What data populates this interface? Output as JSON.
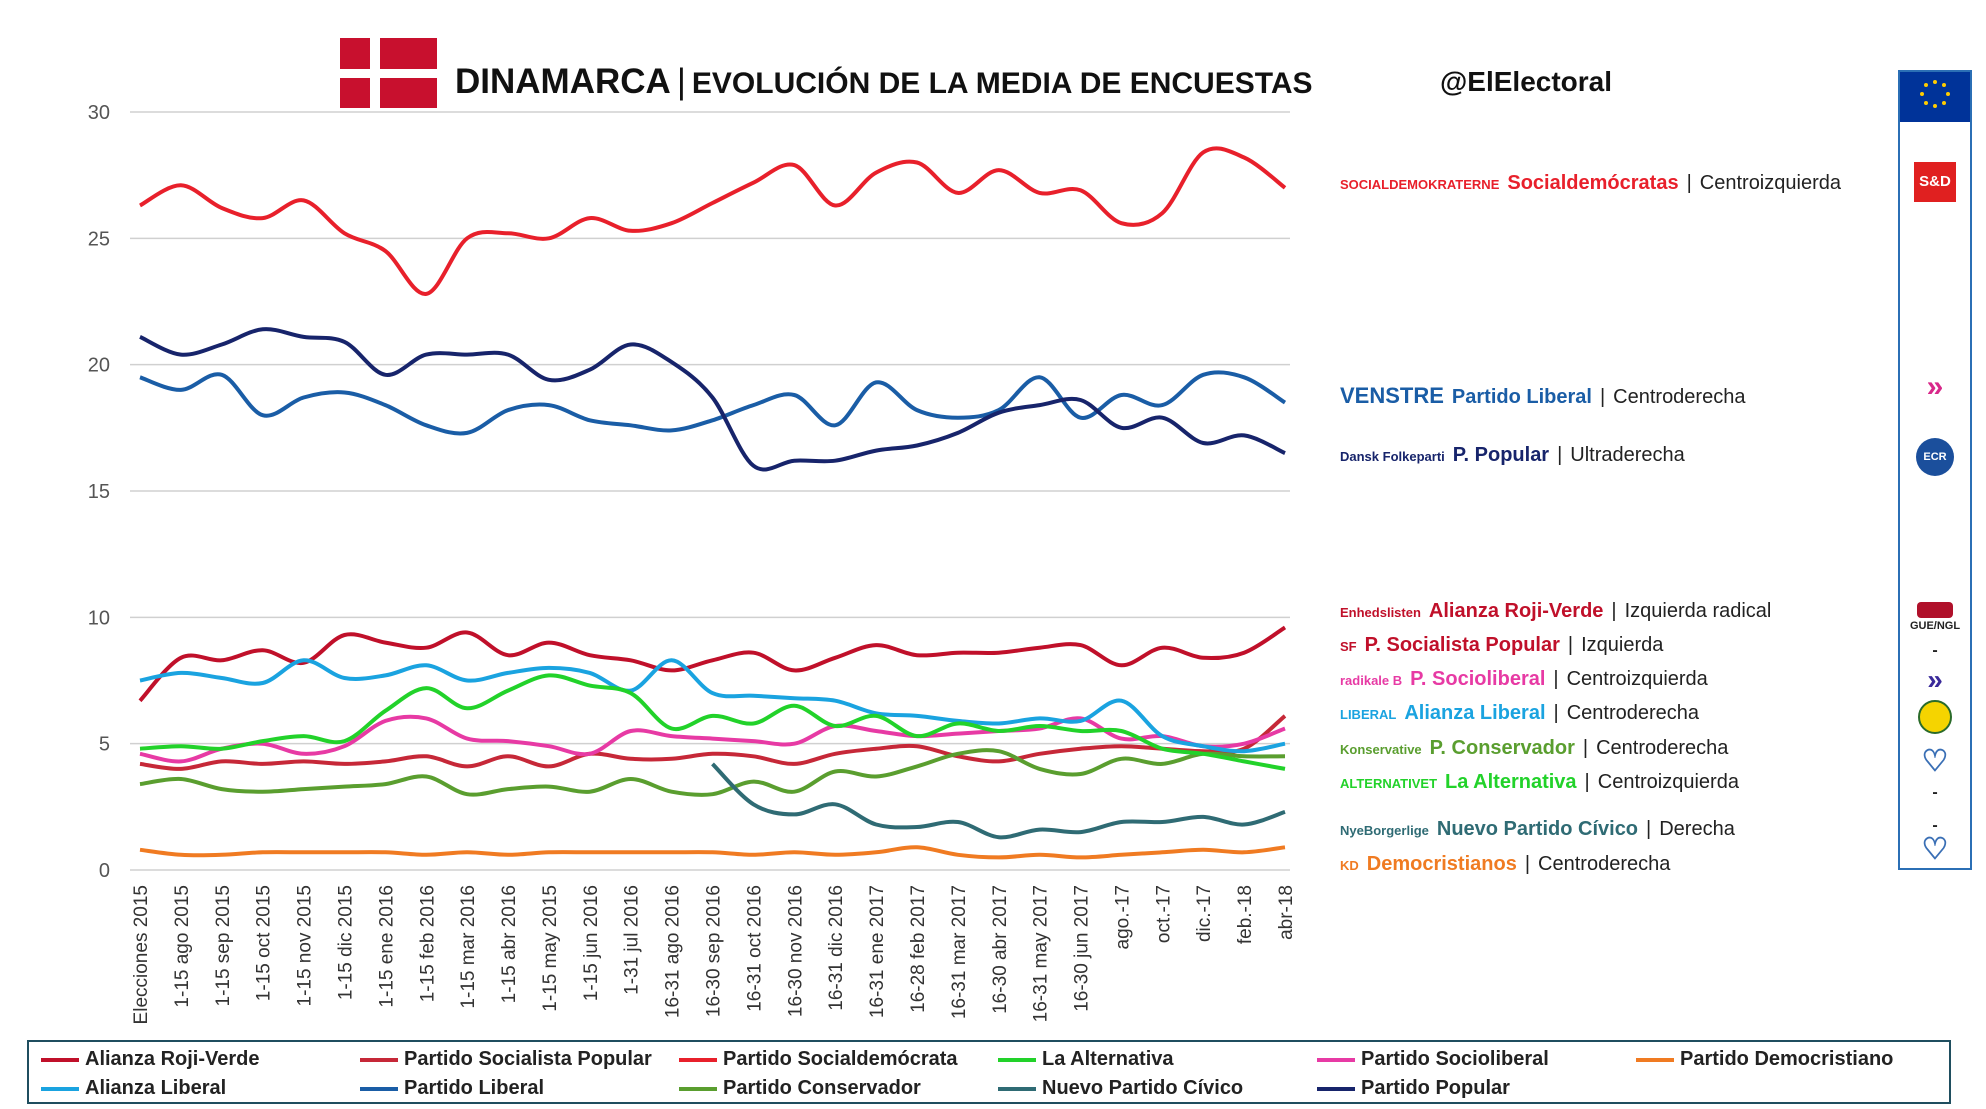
{
  "header": {
    "title_main": "DINAMARCA",
    "title_sep": "|",
    "title_sub": "EVOLUCIÓN DE LA MEDIA DE ENCUESTAS",
    "handle": "@ElElectoral"
  },
  "parties_panel": [
    {
      "logo": "SOCIALDEMOKRATERNE",
      "name": "Socialdemócratas",
      "ideology": "Centroizquierda",
      "color": "#e8202b"
    },
    {
      "logo": "VENSTRE",
      "name": "Partido Liberal",
      "ideology": "Centroderecha",
      "color": "#1a5da6"
    },
    {
      "logo": "Dansk Folkeparti",
      "name": "P. Popular",
      "ideology": "Ultraderecha",
      "color": "#17246b"
    },
    {
      "logo": "Enhedslisten",
      "name": "Alianza Roji-Verde",
      "ideology": "Izquierda radical",
      "color": "#c0102a"
    },
    {
      "logo": "SF",
      "name": "P. Socialista Popular",
      "ideology": "Izquierda",
      "color": "#c0102a"
    },
    {
      "logo": "radikale B",
      "name": "P. Socioliberal",
      "ideology": "Centroizquierda",
      "color": "#e73aa4"
    },
    {
      "logo": "LIBERAL",
      "name": "Alianza Liberal",
      "ideology": "Centroderecha",
      "color": "#1aa3e0"
    },
    {
      "logo": "Konservative",
      "name": "P. Conservador",
      "ideology": "Centroderecha",
      "color": "#5a9e2f"
    },
    {
      "logo": "ALTERNATIVET",
      "name": "La Alternativa",
      "ideology": "Centroizquierda",
      "color": "#22d22a"
    },
    {
      "logo": "NyeBorgerlige",
      "name": "Nuevo Partido Cívico",
      "ideology": "Derecha",
      "color": "#2f6b74"
    },
    {
      "logo": "KD",
      "name": "Democristianos",
      "ideology": "Centroderecha",
      "color": "#f07b22"
    }
  ],
  "sidebar": {
    "icons": [
      {
        "name": "eu-flag-icon"
      },
      {
        "name": "sd-group-icon",
        "label": "S&D"
      },
      {
        "name": "alde-group-icon"
      },
      {
        "name": "ecr-group-icon",
        "label": "ECR"
      },
      {
        "name": "gue-ngl-group-icon",
        "label": "GUE/NGL"
      },
      {
        "name": "alde-group-icon-2"
      },
      {
        "name": "greens-group-icon"
      },
      {
        "name": "epp-group-icon"
      },
      {
        "name": "epp-group-icon-2"
      }
    ],
    "dashes": [
      "-",
      "-",
      "-"
    ]
  },
  "chart_data": {
    "type": "line",
    "ylim": [
      0,
      30
    ],
    "yticks": [
      0,
      5,
      10,
      15,
      20,
      25,
      30
    ],
    "grid": true,
    "legend_position": "bottom",
    "categories": [
      "Elecciones 2015",
      "1-15 ago 2015",
      "1-15 sep 2015",
      "1-15 oct 2015",
      "1-15 nov 2015",
      "1-15 dic 2015",
      "1-15 ene 2016",
      "1-15 feb 2016",
      "1-15 mar 2016",
      "1-15 abr 2016",
      "1-15 may 2015",
      "1-15 jun 2016",
      "1-31 jul 2016",
      "16-31 ago 2016",
      "16-30 sep 2016",
      "16-31 oct 2016",
      "16-30 nov 2016",
      "16-31 dic 2016",
      "16-31 ene 2017",
      "16-28 feb 2017",
      "16-31 mar 2017",
      "16-30 abr 2017",
      "16-31 may 2017",
      "16-30 jun 2017",
      "ago.-17",
      "oct.-17",
      "dic.-17",
      "feb.-18",
      "abr-18"
    ],
    "series": [
      {
        "name": "Partido Socialdemócrata",
        "color": "#e8202b",
        "values": [
          26.3,
          27.1,
          26.2,
          25.8,
          26.5,
          25.2,
          24.5,
          22.8,
          25.0,
          25.2,
          25.0,
          25.8,
          25.3,
          25.6,
          26.4,
          27.2,
          27.9,
          26.3,
          27.6,
          28.0,
          26.8,
          27.7,
          26.8,
          26.9,
          25.6,
          26.0,
          28.4,
          28.2,
          27.0
        ]
      },
      {
        "name": "Partido Liberal",
        "color": "#1a5da6",
        "values": [
          19.5,
          19.0,
          19.6,
          18.0,
          18.7,
          18.9,
          18.4,
          17.6,
          17.3,
          18.2,
          18.4,
          17.8,
          17.6,
          17.4,
          17.8,
          18.4,
          18.8,
          17.6,
          19.3,
          18.2,
          17.9,
          18.2,
          19.5,
          17.9,
          18.8,
          18.4,
          19.6,
          19.5,
          18.5
        ]
      },
      {
        "name": "Partido Popular",
        "color": "#17246b",
        "values": [
          21.1,
          20.4,
          20.8,
          21.4,
          21.1,
          20.9,
          19.6,
          20.4,
          20.4,
          20.4,
          19.4,
          19.8,
          20.8,
          20.1,
          18.7,
          16.0,
          16.2,
          16.2,
          16.6,
          16.8,
          17.3,
          18.1,
          18.4,
          18.6,
          17.5,
          17.9,
          16.9,
          17.2,
          16.5
        ]
      },
      {
        "name": "Alianza Roji-Verde",
        "color": "#c0102a",
        "values": [
          6.7,
          8.4,
          8.3,
          8.7,
          8.2,
          9.3,
          9.0,
          8.8,
          9.4,
          8.5,
          9.0,
          8.5,
          8.3,
          7.9,
          8.3,
          8.6,
          7.9,
          8.4,
          8.9,
          8.5,
          8.6,
          8.6,
          8.8,
          8.9,
          8.1,
          8.8,
          8.4,
          8.6,
          9.6
        ]
      },
      {
        "name": "Partido Socialista Popular",
        "color": "#c62838",
        "values": [
          4.2,
          4.0,
          4.3,
          4.2,
          4.3,
          4.2,
          4.3,
          4.5,
          4.1,
          4.5,
          4.1,
          4.6,
          4.4,
          4.4,
          4.6,
          4.5,
          4.2,
          4.6,
          4.8,
          4.9,
          4.5,
          4.3,
          4.6,
          4.8,
          4.9,
          4.8,
          4.7,
          4.8,
          6.1
        ]
      },
      {
        "name": "Partido Socioliberal",
        "color": "#e73aa4",
        "values": [
          4.6,
          4.3,
          4.8,
          5.0,
          4.6,
          4.9,
          5.9,
          6.0,
          5.2,
          5.1,
          4.9,
          4.6,
          5.5,
          5.3,
          5.2,
          5.1,
          5.0,
          5.7,
          5.5,
          5.3,
          5.4,
          5.5,
          5.6,
          6.0,
          5.2,
          5.3,
          4.9,
          5.0,
          5.6
        ]
      },
      {
        "name": "Alianza Liberal",
        "color": "#1aa3e0",
        "values": [
          7.5,
          7.8,
          7.6,
          7.4,
          8.3,
          7.6,
          7.7,
          8.1,
          7.5,
          7.8,
          8.0,
          7.8,
          7.1,
          8.3,
          7.0,
          6.9,
          6.8,
          6.7,
          6.2,
          6.1,
          5.9,
          5.8,
          6.0,
          5.9,
          6.7,
          5.3,
          4.9,
          4.7,
          5.0
        ]
      },
      {
        "name": "Partido Conservador",
        "color": "#5a9e2f",
        "values": [
          3.4,
          3.6,
          3.2,
          3.1,
          3.2,
          3.3,
          3.4,
          3.7,
          3.0,
          3.2,
          3.3,
          3.1,
          3.6,
          3.1,
          3.0,
          3.5,
          3.1,
          3.9,
          3.7,
          4.1,
          4.6,
          4.7,
          4.0,
          3.8,
          4.4,
          4.2,
          4.6,
          4.5,
          4.5
        ]
      },
      {
        "name": "La Alternativa",
        "color": "#22d22a",
        "values": [
          4.8,
          4.9,
          4.8,
          5.1,
          5.3,
          5.1,
          6.3,
          7.2,
          6.4,
          7.1,
          7.7,
          7.3,
          7.0,
          5.6,
          6.1,
          5.8,
          6.5,
          5.7,
          6.1,
          5.3,
          5.8,
          5.5,
          5.7,
          5.5,
          5.5,
          4.8,
          4.6,
          4.3,
          4.0
        ]
      },
      {
        "name": "Nuevo Partido Cívico",
        "color": "#2f6b74",
        "values": [
          null,
          null,
          null,
          null,
          null,
          null,
          null,
          null,
          null,
          null,
          null,
          null,
          null,
          null,
          4.2,
          2.6,
          2.2,
          2.6,
          1.8,
          1.7,
          1.9,
          1.3,
          1.6,
          1.5,
          1.9,
          1.9,
          2.1,
          1.8,
          2.3
        ]
      },
      {
        "name": "Partido Democristiano",
        "color": "#f07b22",
        "values": [
          0.8,
          0.6,
          0.6,
          0.7,
          0.7,
          0.7,
          0.7,
          0.6,
          0.7,
          0.6,
          0.7,
          0.7,
          0.7,
          0.7,
          0.7,
          0.6,
          0.7,
          0.6,
          0.7,
          0.9,
          0.6,
          0.5,
          0.6,
          0.5,
          0.6,
          0.7,
          0.8,
          0.7,
          0.9
        ]
      }
    ]
  },
  "legend": {
    "items": [
      {
        "label": "Alianza Roji-Verde",
        "color": "#c0102a"
      },
      {
        "label": "Partido Socialista Popular",
        "color": "#c62838"
      },
      {
        "label": "Partido Socialdemócrata",
        "color": "#e8202b"
      },
      {
        "label": "La Alternativa",
        "color": "#22d22a"
      },
      {
        "label": "Partido Socioliberal",
        "color": "#e73aa4"
      },
      {
        "label": "Partido Democristiano",
        "color": "#f07b22"
      },
      {
        "label": "Alianza Liberal",
        "color": "#1aa3e0"
      },
      {
        "label": "Partido Liberal",
        "color": "#1a5da6"
      },
      {
        "label": "Partido Conservador",
        "color": "#5a9e2f"
      },
      {
        "label": "Nuevo Partido Cívico",
        "color": "#2f6b74"
      },
      {
        "label": "Partido Popular",
        "color": "#17246b"
      }
    ]
  }
}
